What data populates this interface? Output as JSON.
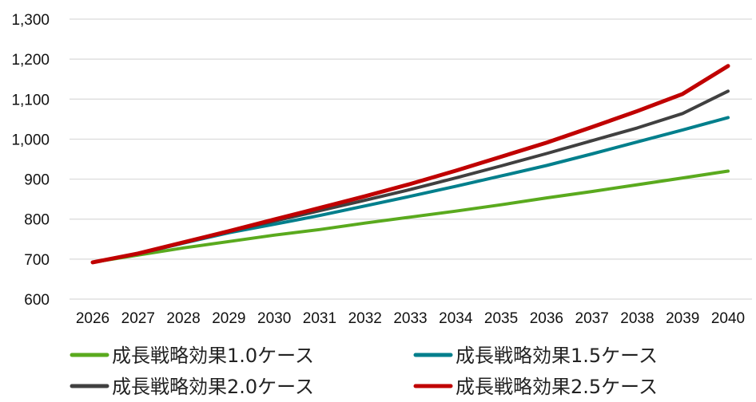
{
  "chart_data": {
    "type": "line",
    "x": [
      "2026",
      "2027",
      "2028",
      "2029",
      "2030",
      "2031",
      "2032",
      "2033",
      "2034",
      "2035",
      "2036",
      "2037",
      "2038",
      "2039",
      "2040"
    ],
    "ylim": [
      600,
      1300
    ],
    "yticks": [
      "600",
      "700",
      "800",
      "900",
      "1,000",
      "1,100",
      "1,200",
      "1,300"
    ],
    "ytick_values": [
      600,
      700,
      800,
      900,
      1000,
      1100,
      1200,
      1300
    ],
    "grid": true,
    "legend_position": "bottom",
    "series": [
      {
        "name": "成長戦略効果1.0ケース",
        "color": "#5aaa1e",
        "values": [
          692,
          710,
          728,
          744,
          760,
          774,
          790,
          805,
          820,
          836,
          853,
          869,
          886,
          903,
          920
        ]
      },
      {
        "name": "成長戦略効果1.5ケース",
        "color": "#007f8c",
        "values": [
          692,
          713,
          740,
          766,
          787,
          809,
          833,
          857,
          882,
          908,
          934,
          963,
          993,
          1023,
          1054
        ]
      },
      {
        "name": "成長戦略効果2.0ケース",
        "color": "#404040",
        "values": [
          692,
          714,
          742,
          769,
          795,
          821,
          847,
          874,
          903,
          933,
          964,
          996,
          1028,
          1064,
          1120
        ]
      },
      {
        "name": "成長戦略効果2.5ケース",
        "color": "#c00000",
        "values": [
          692,
          714,
          742,
          770,
          799,
          828,
          857,
          888,
          921,
          956,
          991,
          1030,
          1070,
          1113,
          1183
        ]
      }
    ]
  }
}
